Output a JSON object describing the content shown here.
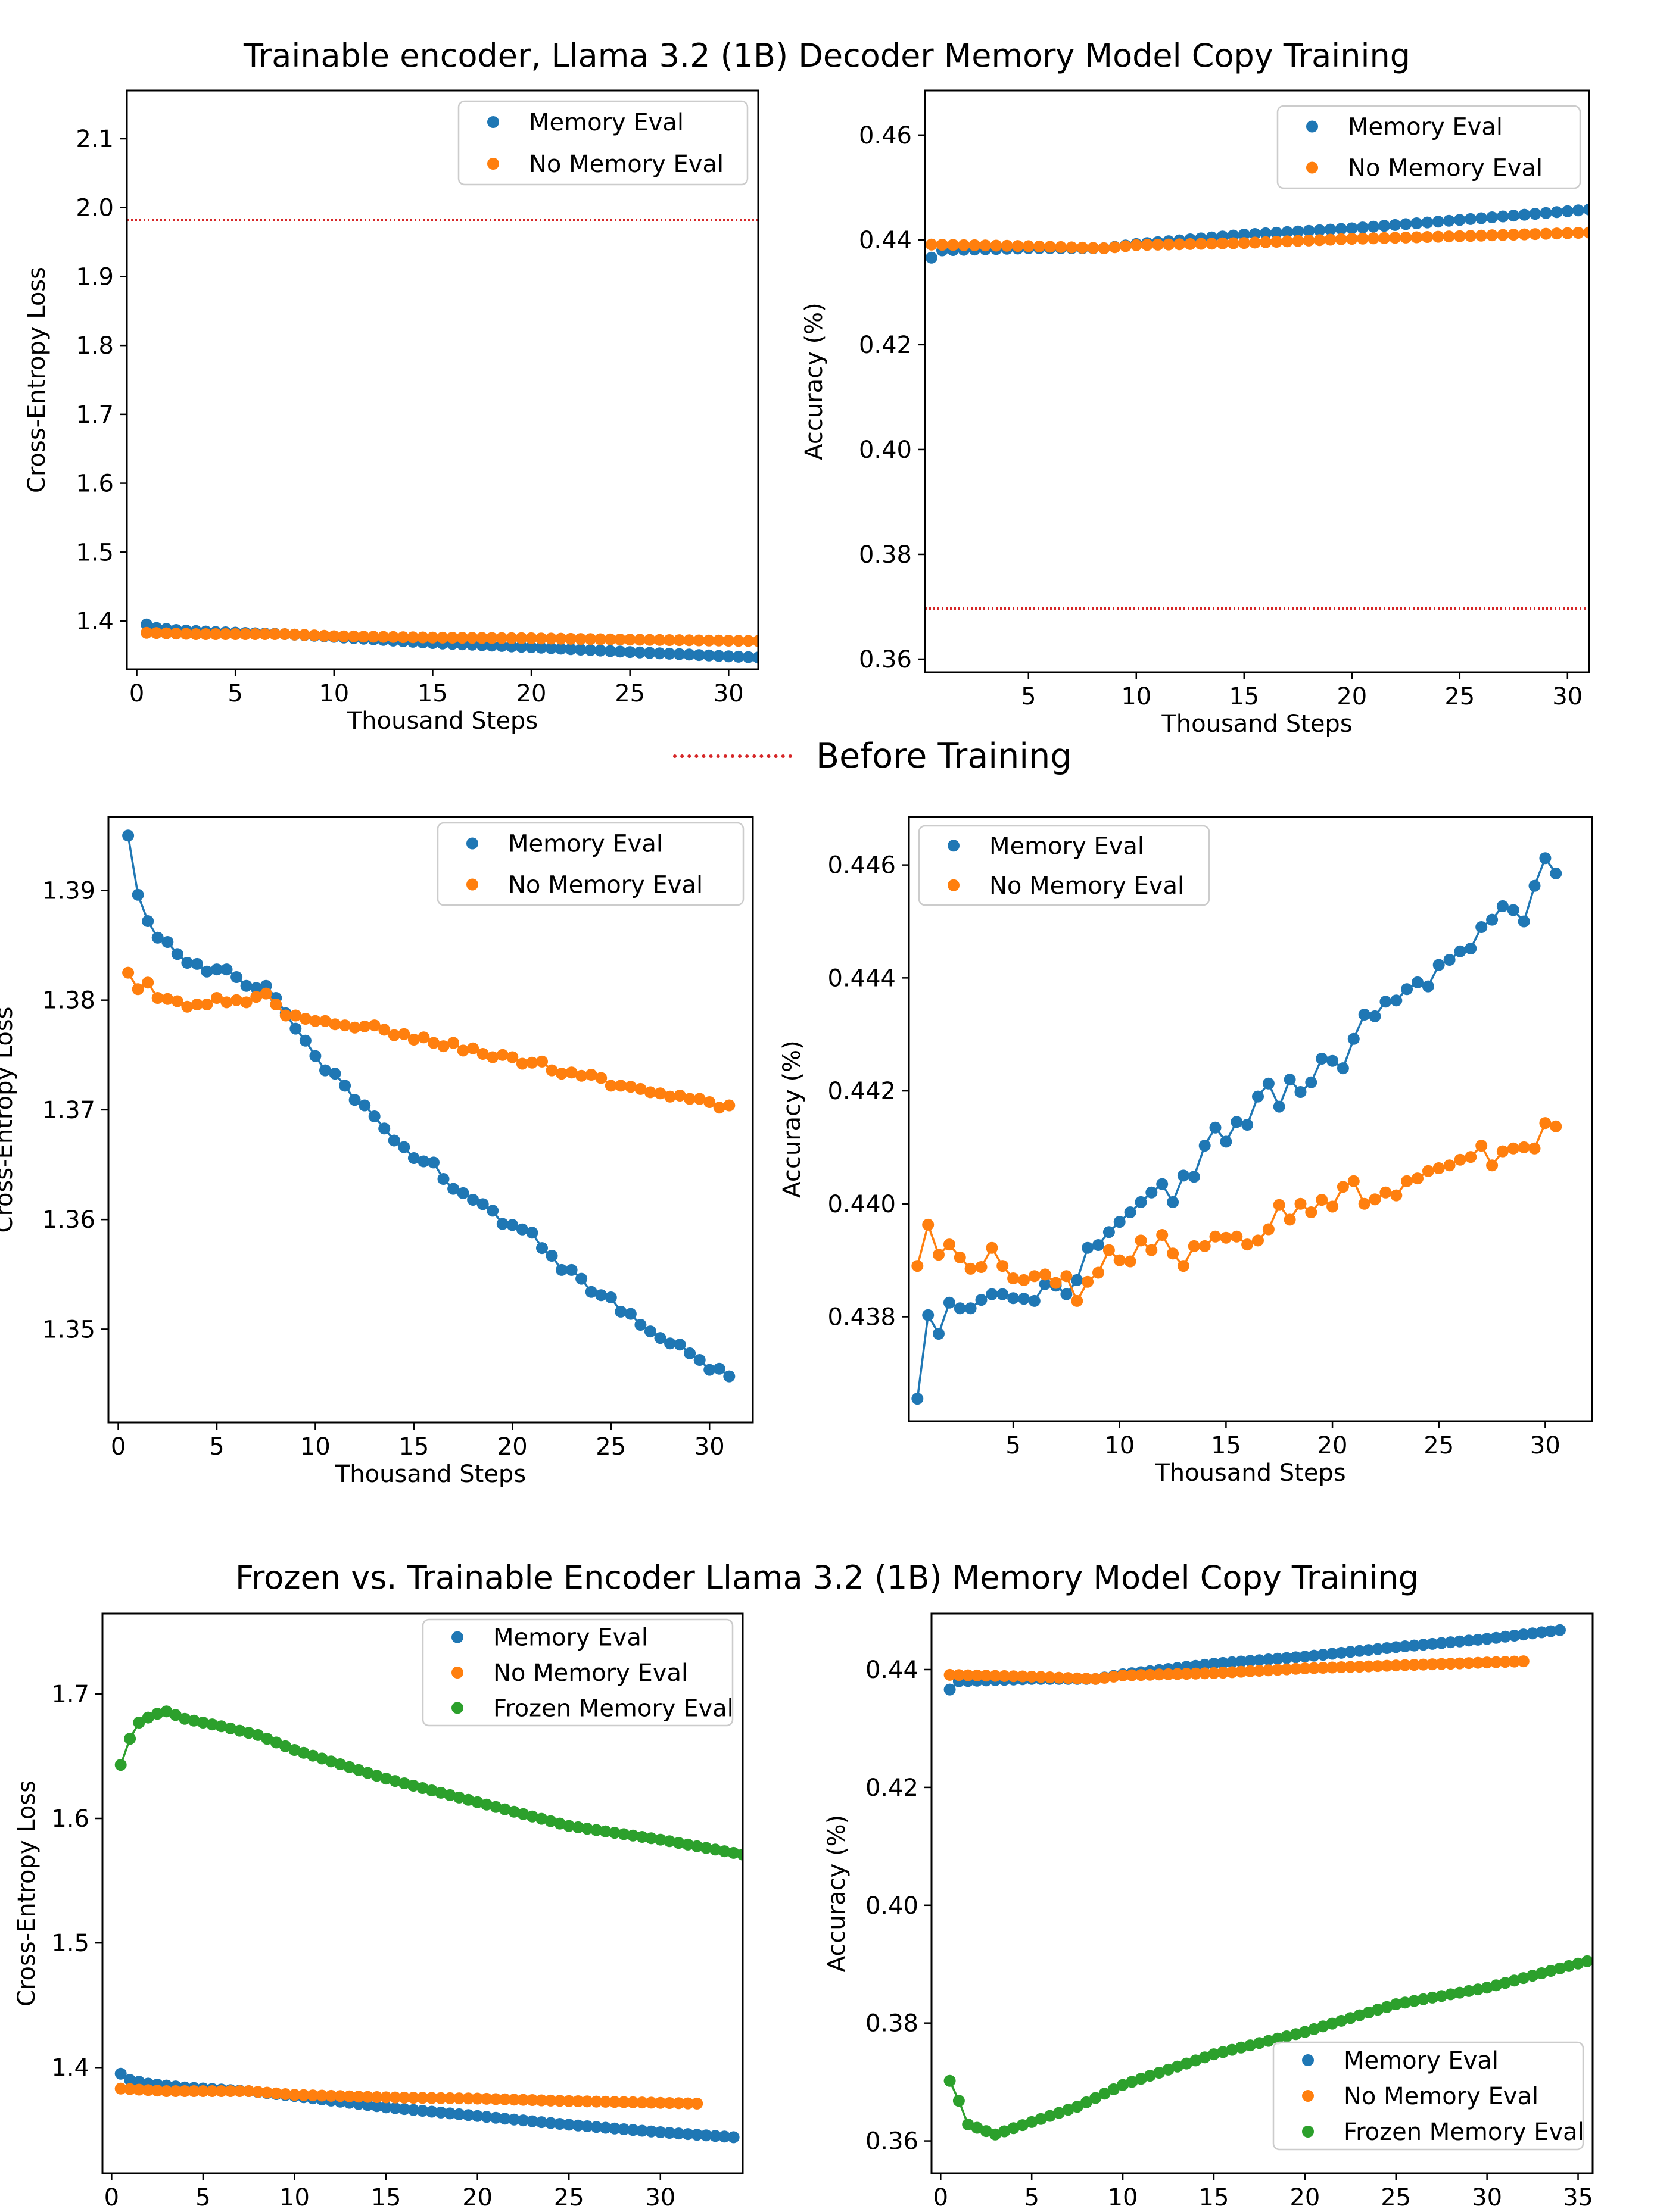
{
  "title_top": "Trainable encoder, Llama 3.2 (1B) Decoder Memory Model Copy Training",
  "title_bottom": "Frozen vs. Trainable Encoder Llama 3.2 (1B) Memory Model Copy Training",
  "shared_legend_label": "Before Training",
  "colors": {
    "memory": "#1f77b4",
    "no_memory": "#ff7f0e",
    "frozen": "#2ca02c",
    "before": "#d62728"
  },
  "chart_data": [
    {
      "id": "loss_top",
      "type": "scatter",
      "xlabel": "Thousand Steps",
      "ylabel": "Cross-Entropy Loss",
      "xlim": [
        -0.5,
        31.5
      ],
      "ylim": [
        1.33,
        2.17
      ],
      "xticks": [
        0,
        5,
        10,
        15,
        20,
        25,
        30
      ],
      "yticks": [
        1.4,
        1.5,
        1.6,
        1.7,
        1.8,
        1.9,
        2.0,
        2.1
      ],
      "ytick_decimals": 1,
      "hline": 1.982,
      "legend": [
        "Memory Eval",
        "No Memory Eval"
      ],
      "series": [
        {
          "name": "Memory Eval",
          "color": "memory",
          "kind": "dense",
          "x0": 0.5,
          "dx": 0.5,
          "n": 63,
          "anchors": [
            [
              0.5,
              1.395
            ],
            [
              1.0,
              1.39
            ],
            [
              2.0,
              1.387
            ],
            [
              4,
              1.384
            ],
            [
              7.5,
              1.381
            ],
            [
              10,
              1.377
            ],
            [
              15,
              1.368
            ],
            [
              20,
              1.362
            ],
            [
              25,
              1.355
            ],
            [
              31.5,
              1.347
            ]
          ]
        },
        {
          "name": "No Memory Eval",
          "color": "no_memory",
          "kind": "dense",
          "x0": 0.5,
          "dx": 0.5,
          "n": 63,
          "anchors": [
            [
              0.5,
              1.383
            ],
            [
              3,
              1.381
            ],
            [
              7.5,
              1.381
            ],
            [
              10,
              1.378
            ],
            [
              15,
              1.376
            ],
            [
              20,
              1.375
            ],
            [
              25,
              1.373
            ],
            [
              31.5,
              1.371
            ]
          ]
        }
      ]
    },
    {
      "id": "acc_top",
      "type": "scatter",
      "xlabel": "Thousand Steps",
      "ylabel": "Accuracy (%)",
      "xlim": [
        0.2,
        31.0
      ],
      "ylim": [
        0.3575,
        0.4685
      ],
      "xticks": [
        5,
        10,
        15,
        20,
        25,
        30
      ],
      "yticks": [
        0.36,
        0.38,
        0.4,
        0.42,
        0.44,
        0.46
      ],
      "ytick_decimals": 2,
      "hline": 0.3697,
      "legend": [
        "Memory Eval",
        "No Memory Eval"
      ],
      "series": [
        {
          "name": "Memory Eval",
          "color": "memory",
          "kind": "dense",
          "x0": 0.5,
          "dx": 0.5,
          "n": 62,
          "anchors": [
            [
              0.5,
              0.4366
            ],
            [
              1,
              0.438
            ],
            [
              5,
              0.4384
            ],
            [
              8.5,
              0.4384
            ],
            [
              10,
              0.4392
            ],
            [
              15,
              0.441
            ],
            [
              20,
              0.4422
            ],
            [
              25,
              0.4438
            ],
            [
              31,
              0.4458
            ]
          ]
        },
        {
          "name": "No Memory Eval",
          "color": "no_memory",
          "kind": "dense",
          "x0": 0.5,
          "dx": 0.5,
          "n": 62,
          "anchors": [
            [
              0.5,
              0.4391
            ],
            [
              5,
              0.4388
            ],
            [
              8.5,
              0.4384
            ],
            [
              10,
              0.439
            ],
            [
              15,
              0.4394
            ],
            [
              20,
              0.4402
            ],
            [
              25,
              0.4407
            ],
            [
              31,
              0.4414
            ]
          ]
        }
      ]
    },
    {
      "id": "loss_mid",
      "type": "line",
      "xlabel": "Thousand Steps",
      "ylabel": "Cross-Entropy Loss",
      "xlim": [
        -0.5,
        32.2
      ],
      "ylim": [
        1.3415,
        1.3967
      ],
      "xticks": [
        0,
        5,
        10,
        15,
        20,
        25,
        30
      ],
      "yticks": [
        1.35,
        1.36,
        1.37,
        1.38,
        1.39
      ],
      "ytick_decimals": 2,
      "legend": [
        "Memory Eval",
        "No Memory Eval"
      ],
      "series": [
        {
          "name": "Memory Eval",
          "color": "memory",
          "x0": 0.5,
          "dx": 0.5,
          "values": [
            1.395,
            1.3896,
            1.3872,
            1.3857,
            1.3853,
            1.3842,
            1.3834,
            1.3833,
            1.3826,
            1.3828,
            1.3828,
            1.3821,
            1.3813,
            1.3811,
            1.3813,
            1.3802,
            1.3788,
            1.3774,
            1.3763,
            1.3749,
            1.3736,
            1.3733,
            1.3722,
            1.3709,
            1.3704,
            1.3694,
            1.3683,
            1.3672,
            1.3666,
            1.3656,
            1.3653,
            1.3652,
            1.3637,
            1.3628,
            1.3624,
            1.3618,
            1.3614,
            1.3608,
            1.3596,
            1.3595,
            1.3591,
            1.3588,
            1.3574,
            1.3567,
            1.3554,
            1.3554,
            1.3546,
            1.3534,
            1.3531,
            1.3529,
            1.3516,
            1.3514,
            1.3504,
            1.3498,
            1.3492,
            1.3487,
            1.3486,
            1.3478,
            1.3472,
            1.3463,
            1.3464,
            1.3457
          ]
        },
        {
          "name": "No Memory Eval",
          "color": "no_memory",
          "x0": 0.5,
          "dx": 0.5,
          "values": [
            1.3825,
            1.381,
            1.3816,
            1.3802,
            1.3801,
            1.3799,
            1.3794,
            1.3796,
            1.3796,
            1.3802,
            1.3798,
            1.38,
            1.3798,
            1.3803,
            1.3806,
            1.3796,
            1.3786,
            1.3786,
            1.3783,
            1.3781,
            1.3781,
            1.3778,
            1.3777,
            1.3775,
            1.3776,
            1.3777,
            1.3773,
            1.3768,
            1.3769,
            1.3764,
            1.3766,
            1.3761,
            1.3758,
            1.3761,
            1.3754,
            1.3756,
            1.3751,
            1.3748,
            1.375,
            1.3748,
            1.3742,
            1.3743,
            1.3744,
            1.3736,
            1.3733,
            1.3734,
            1.3731,
            1.3732,
            1.3729,
            1.3722,
            1.3722,
            1.3721,
            1.3719,
            1.3716,
            1.3715,
            1.3712,
            1.3713,
            1.371,
            1.371,
            1.3707,
            1.3702,
            1.3704
          ]
        }
      ]
    },
    {
      "id": "acc_mid",
      "type": "line",
      "xlabel": "Thousand Steps",
      "ylabel": "Accuracy (%)",
      "xlim": [
        0.1,
        32.2
      ],
      "ylim": [
        0.43615,
        0.44685
      ],
      "xticks": [
        5,
        10,
        15,
        20,
        25,
        30
      ],
      "yticks": [
        0.438,
        0.44,
        0.442,
        0.444,
        0.446
      ],
      "ytick_decimals": 3,
      "legend": [
        "Memory Eval",
        "No Memory Eval"
      ],
      "series": [
        {
          "name": "Memory Eval",
          "color": "memory",
          "x0": 0.5,
          "dx": 0.5,
          "values": [
            0.43655,
            0.43803,
            0.4377,
            0.43825,
            0.43815,
            0.43815,
            0.4383,
            0.4384,
            0.4384,
            0.43833,
            0.43832,
            0.43828,
            0.43858,
            0.43855,
            0.4384,
            0.43865,
            0.43922,
            0.43927,
            0.4395,
            0.43968,
            0.43985,
            0.44003,
            0.4402,
            0.44035,
            0.44003,
            0.4405,
            0.44048,
            0.44103,
            0.44135,
            0.4411,
            0.44145,
            0.4414,
            0.4419,
            0.44213,
            0.44172,
            0.4422,
            0.44198,
            0.44215,
            0.44257,
            0.44253,
            0.4424,
            0.44292,
            0.44335,
            0.44332,
            0.44358,
            0.4436,
            0.4438,
            0.44392,
            0.44385,
            0.44423,
            0.44432,
            0.44447,
            0.44452,
            0.4449,
            0.44503,
            0.44527,
            0.4452,
            0.445,
            0.44563,
            0.44612,
            0.44585
          ]
        },
        {
          "name": "No Memory Eval",
          "color": "no_memory",
          "x0": 0.5,
          "dx": 0.5,
          "values": [
            0.4389,
            0.43963,
            0.4391,
            0.43928,
            0.43905,
            0.43885,
            0.43888,
            0.43922,
            0.4389,
            0.43868,
            0.43865,
            0.43872,
            0.43875,
            0.4386,
            0.43872,
            0.43828,
            0.43862,
            0.43878,
            0.43918,
            0.439,
            0.43898,
            0.43935,
            0.43918,
            0.43945,
            0.43912,
            0.4389,
            0.43925,
            0.43925,
            0.43942,
            0.4394,
            0.43942,
            0.43928,
            0.43935,
            0.43955,
            0.43998,
            0.43972,
            0.44,
            0.43985,
            0.44007,
            0.43995,
            0.4403,
            0.4404,
            0.44,
            0.44008,
            0.4402,
            0.44015,
            0.4404,
            0.44045,
            0.44058,
            0.44063,
            0.44068,
            0.44078,
            0.44083,
            0.44103,
            0.44068,
            0.44093,
            0.44098,
            0.441,
            0.44098,
            0.44143,
            0.44137
          ]
        }
      ]
    },
    {
      "id": "loss_bot",
      "type": "line",
      "xlabel": "Thousand Steps",
      "ylabel": "Cross-Entropy Loss",
      "xlim": [
        -0.5,
        34.5
      ],
      "ylim": [
        1.315,
        1.7645
      ],
      "xticks": [
        0,
        5,
        10,
        15,
        20,
        25,
        30
      ],
      "yticks": [
        1.4,
        1.5,
        1.6,
        1.7
      ],
      "ytick_decimals": 1,
      "legend": [
        "Memory Eval",
        "No Memory Eval",
        "Frozen Memory Eval"
      ],
      "series": [
        {
          "name": "Memory Eval",
          "color": "memory",
          "kind": "dense",
          "x0": 0.5,
          "dx": 0.5,
          "n": 68,
          "anchors": [
            [
              0.5,
              1.395
            ],
            [
              1,
              1.39
            ],
            [
              2,
              1.387
            ],
            [
              4,
              1.384
            ],
            [
              7.5,
              1.381
            ],
            [
              10,
              1.377
            ],
            [
              15,
              1.368
            ],
            [
              20,
              1.361
            ],
            [
              25,
              1.354
            ],
            [
              30,
              1.348
            ],
            [
              34,
              1.344
            ]
          ]
        },
        {
          "name": "No Memory Eval",
          "color": "no_memory",
          "kind": "dense",
          "x0": 0.5,
          "dx": 0.5,
          "n": 64,
          "anchors": [
            [
              0.5,
              1.383
            ],
            [
              3,
              1.381
            ],
            [
              7.5,
              1.381
            ],
            [
              10,
              1.378
            ],
            [
              15,
              1.376
            ],
            [
              20,
              1.375
            ],
            [
              25,
              1.373
            ],
            [
              32,
              1.371
            ]
          ]
        },
        {
          "name": "Frozen Memory Eval",
          "color": "frozen",
          "kind": "dense",
          "x0": 0.5,
          "dx": 0.5,
          "n": 69,
          "anchors": [
            [
              0.5,
              1.643
            ],
            [
              1,
              1.664
            ],
            [
              1.5,
              1.677
            ],
            [
              2,
              1.681
            ],
            [
              2.5,
              1.684
            ],
            [
              3,
              1.686
            ],
            [
              4,
              1.68
            ],
            [
              6,
              1.674
            ],
            [
              8,
              1.667
            ],
            [
              10,
              1.655
            ],
            [
              15,
              1.632
            ],
            [
              20,
              1.613
            ],
            [
              25,
              1.594
            ],
            [
              30,
              1.583
            ],
            [
              34.5,
              1.571
            ]
          ]
        }
      ]
    },
    {
      "id": "acc_bot",
      "type": "line",
      "xlabel": "Thousand Steps",
      "ylabel": "Accuracy (%)",
      "xlim": [
        -0.5,
        35.8
      ],
      "ylim": [
        0.3545,
        0.4495
      ],
      "xticks": [
        0,
        5,
        10,
        15,
        20,
        25,
        30,
        35
      ],
      "yticks": [
        0.36,
        0.38,
        0.4,
        0.42,
        0.44
      ],
      "ytick_decimals": 2,
      "legend": [
        "Memory Eval",
        "No Memory Eval",
        "Frozen Memory Eval"
      ],
      "series": [
        {
          "name": "Memory Eval",
          "color": "memory",
          "kind": "dense",
          "x0": 0.5,
          "dx": 0.5,
          "n": 68,
          "anchors": [
            [
              0.5,
              0.4366
            ],
            [
              1,
              0.438
            ],
            [
              5,
              0.4384
            ],
            [
              8.5,
              0.4384
            ],
            [
              10,
              0.4392
            ],
            [
              15,
              0.441
            ],
            [
              20,
              0.4422
            ],
            [
              25,
              0.4438
            ],
            [
              30,
              0.4452
            ],
            [
              34,
              0.4467
            ]
          ]
        },
        {
          "name": "No Memory Eval",
          "color": "no_memory",
          "kind": "dense",
          "x0": 0.5,
          "dx": 0.5,
          "n": 64,
          "anchors": [
            [
              0.5,
              0.4391
            ],
            [
              5,
              0.4388
            ],
            [
              8.5,
              0.4384
            ],
            [
              10,
              0.439
            ],
            [
              15,
              0.4394
            ],
            [
              20,
              0.4402
            ],
            [
              25,
              0.4407
            ],
            [
              32,
              0.4414
            ]
          ]
        },
        {
          "name": "Frozen Memory Eval",
          "color": "frozen",
          "kind": "dense",
          "x0": 0.5,
          "dx": 0.5,
          "n": 71,
          "anchors": [
            [
              0.5,
              0.3702
            ],
            [
              1,
              0.3668
            ],
            [
              1.5,
              0.3628
            ],
            [
              3,
              0.3611
            ],
            [
              5,
              0.3632
            ],
            [
              7.5,
              0.3658
            ],
            [
              10,
              0.3695
            ],
            [
              15,
              0.3747
            ],
            [
              20,
              0.3785
            ],
            [
              25,
              0.3832
            ],
            [
              30,
              0.386
            ],
            [
              35.5,
              0.3905
            ]
          ]
        }
      ]
    }
  ]
}
